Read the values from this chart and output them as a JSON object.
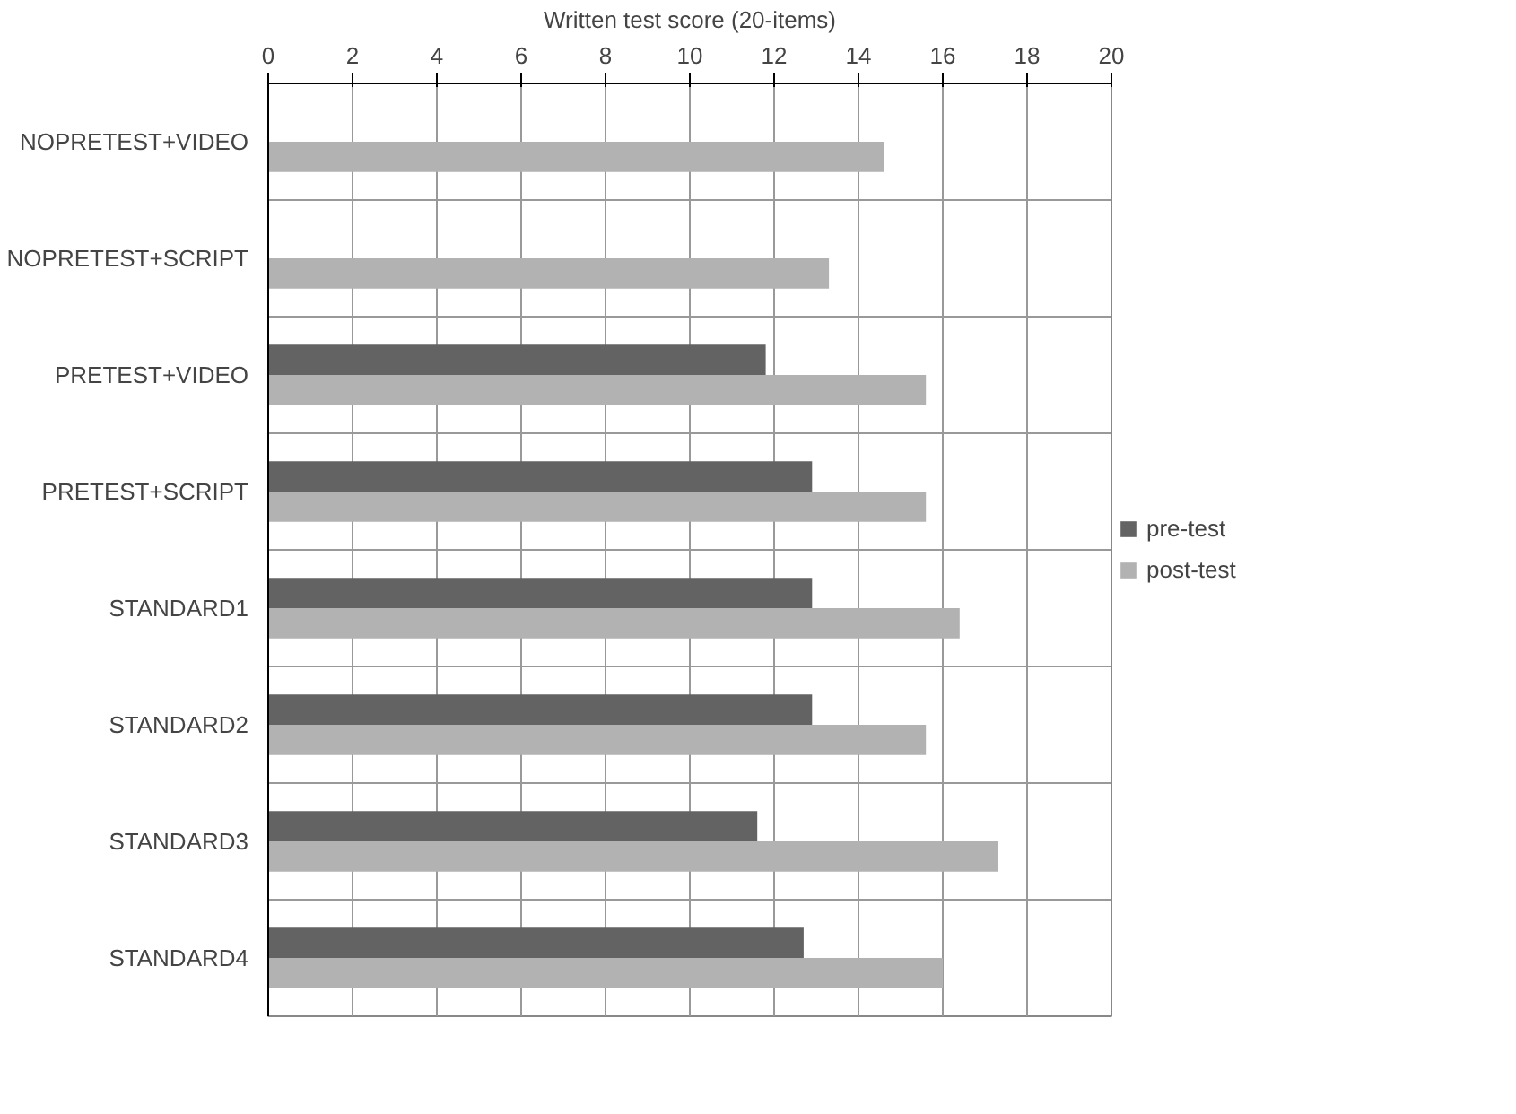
{
  "chart_data": {
    "type": "bar",
    "orientation": "horizontal",
    "xlabel": "Written test score (20-items)",
    "categories": [
      "NOPRETEST+VIDEO",
      "NOPRETEST+SCRIPT",
      "PRETEST+VIDEO",
      "PRETEST+SCRIPT",
      "STANDARD1",
      "STANDARD2",
      "STANDARD3",
      "STANDARD4"
    ],
    "series": [
      {
        "name": "pre-test",
        "color": "#636363",
        "values": [
          null,
          null,
          11.8,
          12.9,
          12.9,
          12.9,
          11.6,
          12.7
        ]
      },
      {
        "name": "post-test",
        "color": "#b2b2b2",
        "values": [
          14.6,
          13.3,
          15.6,
          15.6,
          16.4,
          15.6,
          17.3,
          16.0
        ]
      }
    ],
    "xlim": [
      0,
      20
    ],
    "xticks": [
      0,
      2,
      4,
      6,
      8,
      10,
      12,
      14,
      16,
      18,
      20
    ],
    "grid": true,
    "legend": "right"
  }
}
